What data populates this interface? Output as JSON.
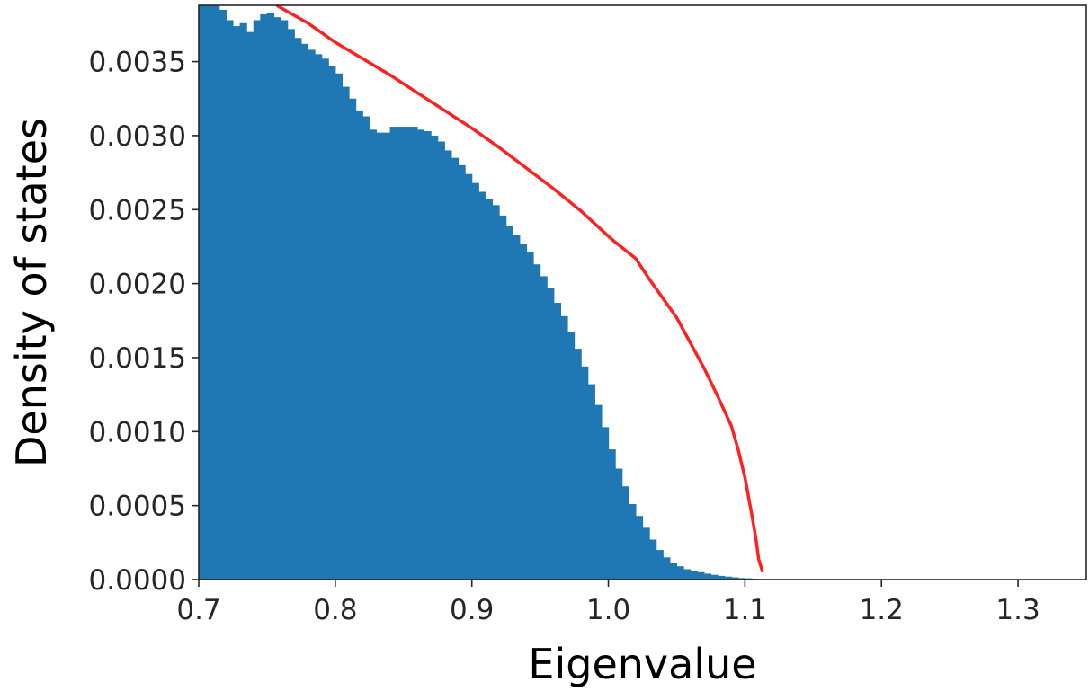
{
  "chart_data": {
    "type": "bar",
    "title": "",
    "xlabel": "Eigenvalue",
    "ylabel": "Density of states",
    "xlim": [
      0.7,
      1.35
    ],
    "ylim": [
      0.0,
      0.00388
    ],
    "grid": false,
    "xticks": [
      0.7,
      0.8,
      0.9,
      1.0,
      1.1,
      1.2,
      1.3
    ],
    "xtick_labels": [
      "0.7",
      "0.8",
      "0.9",
      "1.0",
      "1.1",
      "1.2",
      "1.3"
    ],
    "yticks": [
      0.0,
      0.0005,
      0.001,
      0.0015,
      0.002,
      0.0025,
      0.003,
      0.0035
    ],
    "ytick_labels": [
      "0.0000",
      "0.0005",
      "0.0010",
      "0.0015",
      "0.0020",
      "0.0025",
      "0.0030",
      "0.0035"
    ],
    "colors": {
      "histogram": "#1f77b4",
      "curve": "#ff2020"
    },
    "histogram": {
      "bin_width": 0.005,
      "bin_start": 0.7,
      "values": [
        0.00388,
        0.00388,
        0.00388,
        0.00385,
        0.00378,
        0.00374,
        0.00376,
        0.0037,
        0.00378,
        0.00382,
        0.00383,
        0.0038,
        0.00378,
        0.00372,
        0.00366,
        0.00362,
        0.00358,
        0.00355,
        0.00352,
        0.00347,
        0.00342,
        0.00333,
        0.00325,
        0.00317,
        0.00313,
        0.00304,
        0.00302,
        0.00302,
        0.00306,
        0.00306,
        0.00306,
        0.00306,
        0.00304,
        0.00303,
        0.003,
        0.00296,
        0.0029,
        0.00285,
        0.0028,
        0.00274,
        0.00268,
        0.00262,
        0.00257,
        0.00253,
        0.00246,
        0.00239,
        0.00233,
        0.00227,
        0.00221,
        0.00213,
        0.00205,
        0.00197,
        0.00187,
        0.00178,
        0.00167,
        0.00156,
        0.00144,
        0.00132,
        0.00118,
        0.00103,
        0.00088,
        0.00075,
        0.00063,
        0.00051,
        0.00043,
        0.00035,
        0.00027,
        0.0002,
        0.00015,
        0.00011,
        9e-05,
        7e-05,
        6e-05,
        5e-05,
        4e-05,
        3.2e-05,
        2.5e-05,
        2e-05,
        1.5e-05,
        1e-05,
        8e-06,
        5e-06,
        3e-06,
        2e-06
      ]
    },
    "curve": {
      "x": [
        0.757,
        0.78,
        0.8,
        0.82,
        0.84,
        0.86,
        0.88,
        0.9,
        0.92,
        0.94,
        0.96,
        0.98,
        1.0,
        1.005,
        1.02,
        1.03,
        1.05,
        1.07,
        1.08,
        1.09,
        1.095,
        1.1,
        1.105,
        1.108,
        1.11,
        1.113
      ],
      "y": [
        0.00388,
        0.00376,
        0.00363,
        0.00352,
        0.00341,
        0.00329,
        0.00317,
        0.00305,
        0.00292,
        0.00278,
        0.00264,
        0.00249,
        0.00232,
        0.00228,
        0.00217,
        0.00203,
        0.00177,
        0.00143,
        0.00124,
        0.00104,
        0.00088,
        0.00069,
        0.00044,
        0.00028,
        0.00014,
        5e-05
      ]
    }
  }
}
